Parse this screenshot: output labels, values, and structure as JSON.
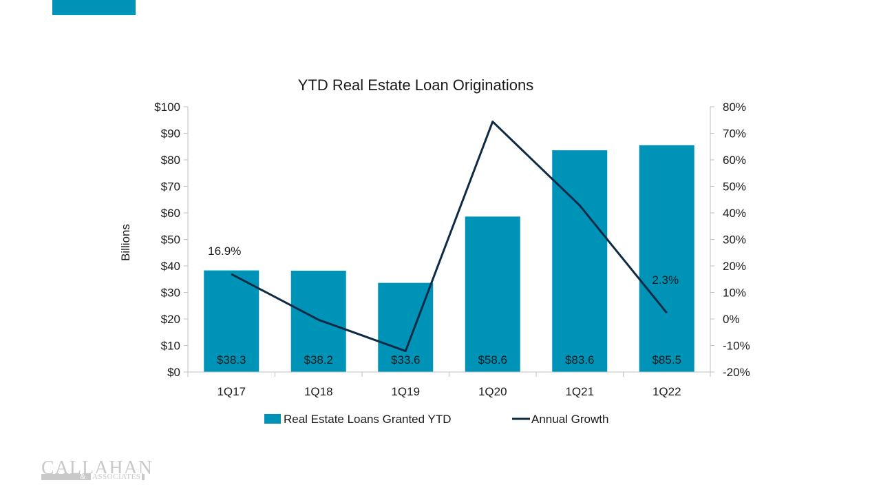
{
  "branding": {
    "accent_color": "#0093b8",
    "logo_name": "CALLAHAN",
    "logo_amp": "&",
    "logo_sub": "ASSOCIATES"
  },
  "chart_data": {
    "type": "bar",
    "title": "YTD Real Estate Loan Originations",
    "ylabel": "Billions",
    "categories": [
      "1Q17",
      "1Q18",
      "1Q19",
      "1Q20",
      "1Q21",
      "1Q22"
    ],
    "ylim": [
      0,
      100
    ],
    "y_ticks": [
      "$0",
      "$10",
      "$20",
      "$30",
      "$40",
      "$50",
      "$60",
      "$70",
      "$80",
      "$90",
      "$100"
    ],
    "y2lim": [
      -20,
      80
    ],
    "y2_ticks": [
      "-20%",
      "-10%",
      "0%",
      "10%",
      "20%",
      "30%",
      "40%",
      "50%",
      "60%",
      "70%",
      "80%"
    ],
    "series": [
      {
        "name": "Real Estate Loans Granted YTD",
        "type": "bar",
        "axis": "left",
        "color": "#0093b8",
        "values": [
          38.3,
          38.2,
          33.6,
          58.6,
          83.6,
          85.5
        ],
        "labels": [
          "$38.3",
          "$38.2",
          "$33.6",
          "$58.6",
          "$83.6",
          "$85.5"
        ]
      },
      {
        "name": "Annual Growth",
        "type": "line",
        "axis": "right",
        "color": "#0f2a44",
        "values": [
          16.9,
          -0.3,
          -12.1,
          74.4,
          42.8,
          2.3
        ],
        "labels": [
          "16.9%",
          "",
          "",
          "",
          "",
          "2.3%"
        ]
      }
    ],
    "grid": false,
    "legend": "bottom"
  }
}
